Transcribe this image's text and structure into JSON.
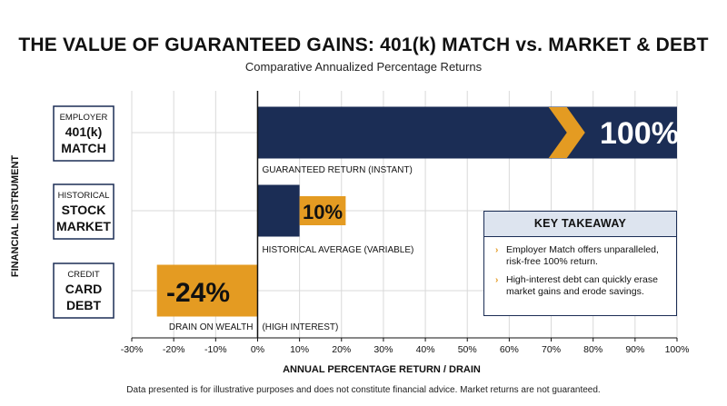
{
  "title": "THE VALUE OF GUARANTEED GAINS: 401(k) MATCH vs. MARKET & DEBT",
  "subtitle": "Comparative Annualized Percentage Returns",
  "footnote": "Data presented is for illustrative purposes and does not constitute financial advice. Market returns are not guaranteed.",
  "colors": {
    "navy": "#1b2d55",
    "gold": "#e49b22",
    "grid": "#d9d9d9"
  },
  "chart_data": {
    "type": "bar",
    "orientation": "horizontal",
    "ylabel": "FINANCIAL INSTRUMENT",
    "xlabel": "ANNUAL PERCENTAGE RETURN / DRAIN",
    "xlim": [
      -30,
      100
    ],
    "xticks": [
      -30,
      -20,
      -10,
      0,
      10,
      20,
      30,
      40,
      50,
      60,
      70,
      80,
      90,
      100
    ],
    "tick_suffix": "%",
    "grid": true,
    "categories": [
      {
        "lines": [
          "EMPLOYER",
          "401(k)",
          "MATCH"
        ]
      },
      {
        "lines": [
          "HISTORICAL",
          "STOCK",
          "MARKET"
        ]
      },
      {
        "lines": [
          "CREDIT",
          "CARD",
          "DEBT"
        ]
      }
    ],
    "bars": [
      {
        "value": 100,
        "label": "100%",
        "annotation": "GUARANTEED RETURN (INSTANT)",
        "color": "#1b2d55"
      },
      {
        "value": 10,
        "label": "10%",
        "annotation": "HISTORICAL AVERAGE (VARIABLE)",
        "color": "#1b2d55"
      },
      {
        "value": -24,
        "label": "-24%",
        "annotation": "DRAIN ON WEALTH",
        "annotation2": "(HIGH INTEREST)",
        "color": "#e49b22"
      }
    ]
  },
  "takeaway": {
    "heading": "KEY TAKEAWAY",
    "points": [
      "Employer Match offers unparalleled, risk-free 100% return.",
      "High-interest debt can quickly erase market gains and erode savings."
    ],
    "bullet_icon": "chevron-right-icon"
  }
}
